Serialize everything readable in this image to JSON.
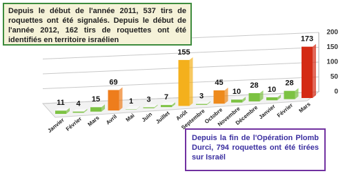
{
  "chart_data": {
    "type": "bar",
    "categories": [
      "Janvier",
      "Février",
      "Mars",
      "Avril",
      "Mai",
      "Juin",
      "Juillet",
      "Août",
      "Septembre",
      "Octobre",
      "Novembre",
      "Décembre",
      "Janvier",
      "Février",
      "Mars"
    ],
    "values": [
      11,
      4,
      15,
      69,
      1,
      3,
      7,
      155,
      3,
      45,
      10,
      28,
      10,
      28,
      173
    ],
    "colors": [
      "#7cc242",
      "#7cc242",
      "#7cc242",
      "#ee7d1c",
      "#7cc242",
      "#7cc242",
      "#7cc242",
      "#f4b01c",
      "#7cc242",
      "#ee8a1c",
      "#7cc242",
      "#7cc242",
      "#7cc242",
      "#7cc242",
      "#d42a14"
    ],
    "ylim": [
      0,
      200
    ],
    "yticks": [
      0,
      50,
      100,
      150,
      200
    ],
    "grid": true,
    "annotations": [
      "Depuis le début de l'année 2011, 537 tirs de roquettes ont été signalés. Depuis le début de l'année 2012, 162 tirs de roquettes ont été identifiés en territoire israélien",
      "Depuis la fin de l'Opération Plomb Durci, 794 roquettes ont été tirées sur Israël"
    ]
  }
}
